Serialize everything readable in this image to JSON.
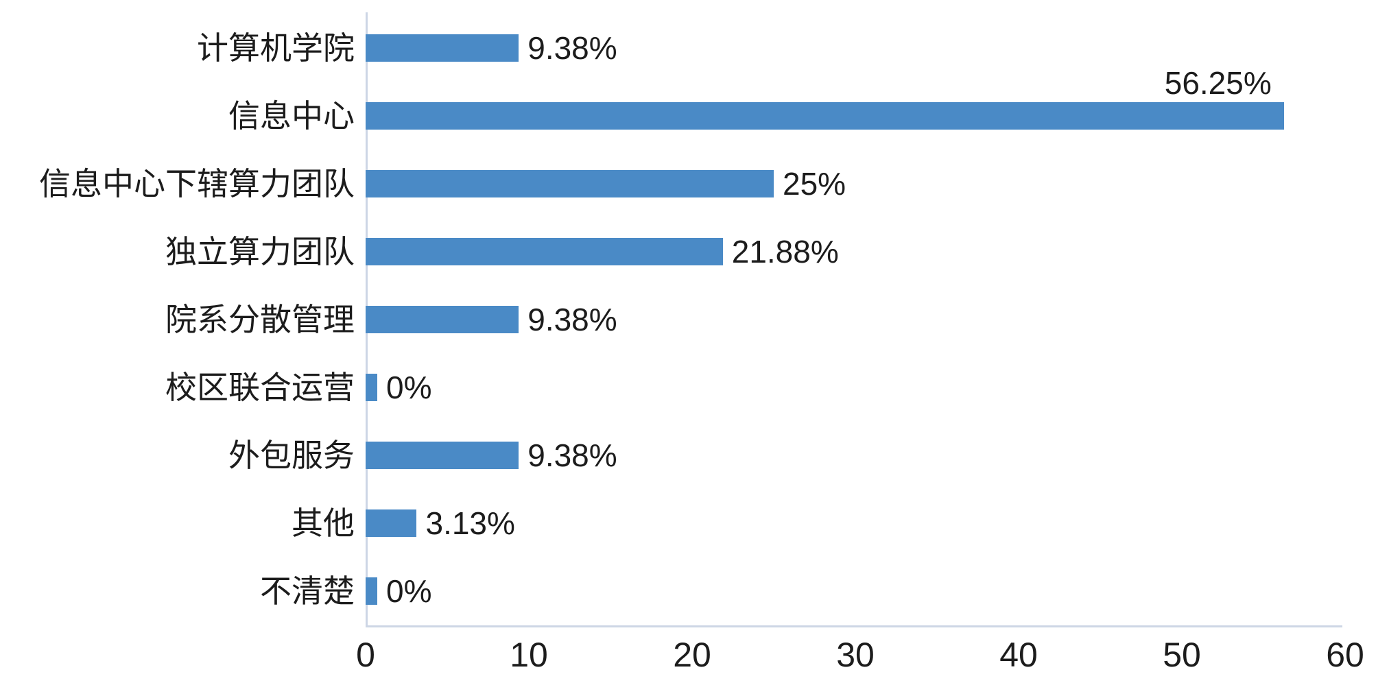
{
  "chart_data": {
    "type": "bar",
    "orientation": "horizontal",
    "title": "",
    "categories": [
      "计算机学院",
      "信息中心",
      "信息中心下辖算力团队",
      "独立算力团队",
      "院系分散管理",
      "校区联合运营",
      "外包服务",
      "其他",
      "不清楚"
    ],
    "values": [
      9.38,
      56.25,
      25,
      21.88,
      9.38,
      0,
      9.38,
      3.13,
      0
    ],
    "value_labels": [
      "9.38%",
      "56.25%",
      "25%",
      "21.88%",
      "9.38%",
      "0%",
      "9.38%",
      "3.13%",
      "0%"
    ],
    "value_label_position": [
      "right",
      "above-end",
      "right",
      "right",
      "right",
      "right",
      "right",
      "right",
      "right"
    ],
    "x_ticks": [
      "0",
      "10",
      "20",
      "30",
      "40",
      "50",
      "60"
    ],
    "xlim": [
      0,
      60
    ],
    "grid": false,
    "legend": null,
    "xlabel": "",
    "ylabel": "",
    "bar_color": "#4a8ac6",
    "axis_line_color": "#cdd6e5",
    "text_color": "#1c1c1c",
    "background_color": "#ffffff"
  }
}
